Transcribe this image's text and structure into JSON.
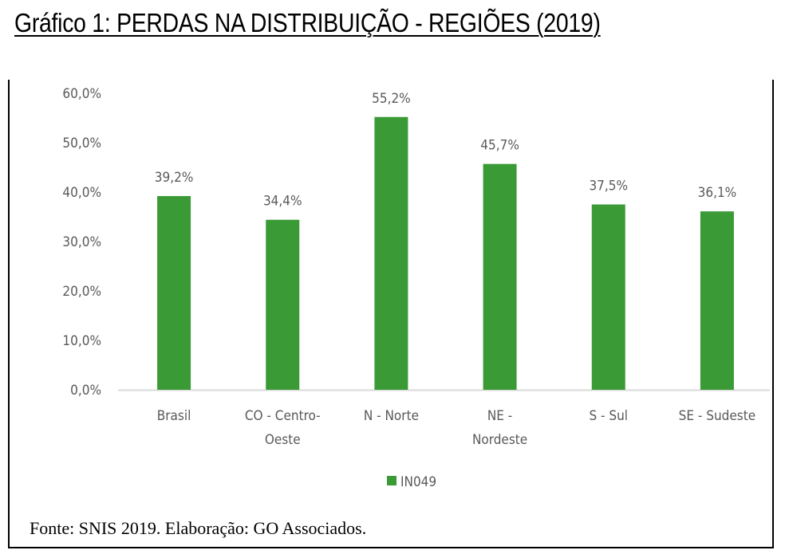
{
  "title": "Gráfico 1: PERDAS NA DISTRIBUIÇÃO - REGIÕES (2019)",
  "source": "Fonte: SNIS 2019. Elaboração: GO Associados.",
  "chart_data": {
    "type": "bar",
    "categories": [
      [
        "Brasil"
      ],
      [
        "CO - Centro-",
        "Oeste"
      ],
      [
        "N - Norte"
      ],
      [
        "NE -",
        "Nordeste"
      ],
      [
        "S - Sul"
      ],
      [
        "SE - Sudeste"
      ]
    ],
    "series": [
      {
        "name": "IN049",
        "values": [
          39.2,
          34.4,
          55.2,
          45.7,
          37.5,
          36.1
        ]
      }
    ],
    "data_labels": [
      "39,2%",
      "34,4%",
      "55,2%",
      "45,7%",
      "37,5%",
      "36,1%"
    ],
    "yticks": [
      "0,0%",
      "10,0%",
      "20,0%",
      "30,0%",
      "40,0%",
      "50,0%",
      "60,0%"
    ],
    "ylim": [
      0,
      60
    ],
    "grid": false,
    "legend": "bottom",
    "colors": {
      "bar": "#3a9a35",
      "text": "#595959",
      "axis": "#d9d9d9"
    }
  }
}
